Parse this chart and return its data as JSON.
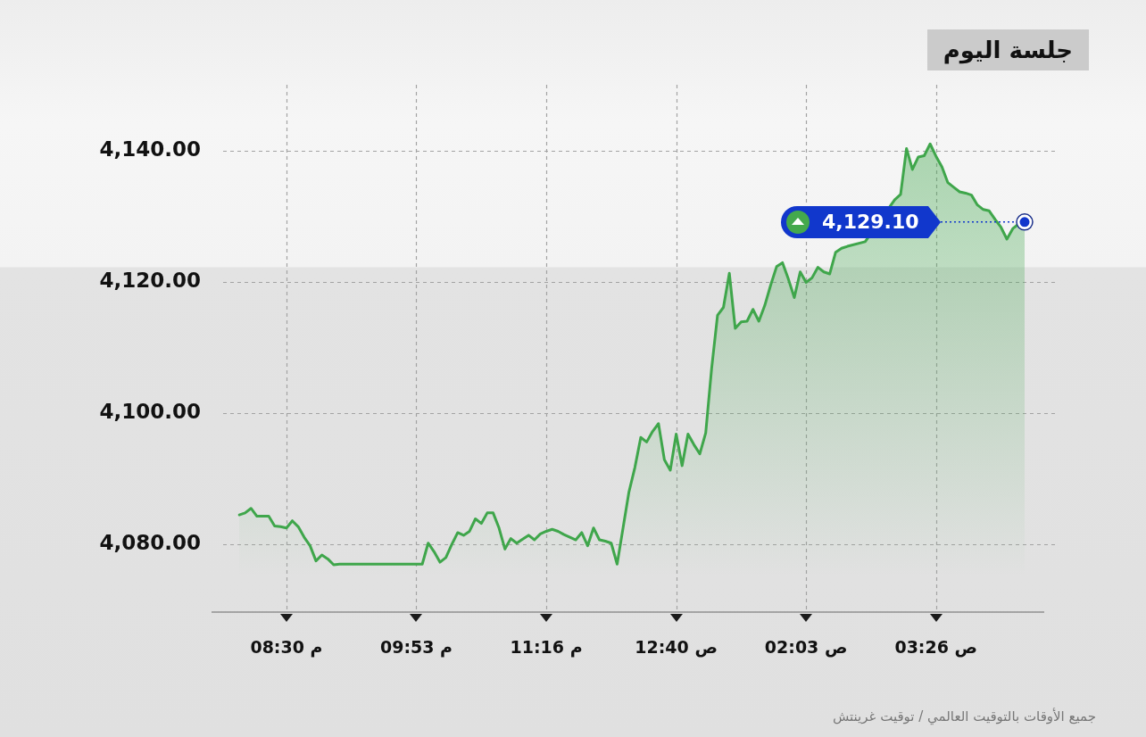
{
  "chart_data": {
    "type": "area",
    "title": "جلسة اليوم",
    "annotations": [
      "جميع الأوقات بالتوقيت العالمي / توقيت غرينتش"
    ],
    "ref_lines": [
      {
        "axis": "y",
        "value": 4129.1,
        "label": "4,129.10",
        "color": "#1137cc",
        "line_style": "dotted"
      }
    ],
    "color": "#3fa64b",
    "ylim": [
      4069.7,
      4150
    ],
    "yticks": [
      {
        "value": 4080,
        "label": "4,080.00"
      },
      {
        "value": 4100,
        "label": "4,100.00"
      },
      {
        "value": 4120,
        "label": "4,120.00"
      },
      {
        "value": 4140,
        "label": "4,140.00"
      }
    ],
    "grid": true,
    "categories": [
      null,
      null,
      null,
      null,
      null,
      null,
      null,
      null,
      "08:30 م",
      null,
      null,
      null,
      null,
      null,
      null,
      null,
      null,
      null,
      null,
      null,
      null,
      null,
      null,
      null,
      null,
      null,
      null,
      null,
      null,
      null,
      "09:53 م",
      null,
      null,
      null,
      null,
      null,
      null,
      null,
      null,
      null,
      null,
      null,
      null,
      null,
      null,
      null,
      null,
      null,
      null,
      null,
      null,
      null,
      "11:16 م",
      null,
      null,
      null,
      null,
      null,
      null,
      null,
      null,
      null,
      null,
      null,
      null,
      null,
      null,
      null,
      null,
      null,
      null,
      null,
      null,
      null,
      "12:40 ص",
      null,
      null,
      null,
      null,
      null,
      null,
      null,
      null,
      null,
      null,
      null,
      null,
      null,
      null,
      null,
      null,
      null,
      null,
      null,
      null,
      null,
      "02:03 ص",
      null,
      null,
      null,
      null,
      null,
      null,
      null,
      null,
      null,
      null,
      null,
      null,
      null,
      null,
      null,
      null,
      null,
      null,
      null,
      null,
      null,
      "03:26 ص",
      null,
      null,
      null,
      null,
      null,
      null,
      null,
      null,
      null,
      null,
      null,
      null,
      null,
      null,
      null
    ],
    "values": [
      4084.5,
      4084.8,
      4085.5,
      4084.3,
      4084.3,
      4084.3,
      4082.8,
      4082.7,
      4082.5,
      4083.6,
      4082.7,
      4081.1,
      4079.8,
      4077.5,
      4078.4,
      4077.8,
      4076.9,
      4077.0,
      4077.0,
      4077.0,
      4077.0,
      4077.0,
      4077.0,
      4077.0,
      4077.0,
      4077.0,
      4077.0,
      4077.0,
      4077.0,
      4077.0,
      4077.0,
      4077.0,
      4080.2,
      4078.9,
      4077.3,
      4078.0,
      4080.0,
      4081.8,
      4081.4,
      4082.0,
      4083.9,
      4083.2,
      4084.8,
      4084.8,
      4082.5,
      4079.3,
      4080.9,
      4080.2,
      4080.8,
      4081.4,
      4080.7,
      4081.6,
      4082.0,
      4082.3,
      4082.0,
      4081.5,
      4081.1,
      4080.7,
      4081.8,
      4079.8,
      4082.5,
      4080.7,
      4080.5,
      4080.2,
      4077.0,
      4082.5,
      4088.0,
      4091.7,
      4096.3,
      4095.6,
      4097.2,
      4098.4,
      4092.9,
      4091.3,
      4096.8,
      4092.0,
      4096.8,
      4095.2,
      4093.8,
      4097.0,
      4106.8,
      4114.9,
      4116.1,
      4121.3,
      4112.9,
      4113.9,
      4114.0,
      4115.8,
      4114.0,
      4116.4,
      4119.5,
      4122.3,
      4122.9,
      4120.4,
      4117.6,
      4121.5,
      4119.9,
      4120.6,
      4122.2,
      4121.5,
      4121.2,
      4124.5,
      4125.1,
      4125.4,
      null,
      null,
      4126.1,
      null,
      null,
      null,
      null,
      4132.5,
      4133.3,
      4140.3,
      4137.1,
      4139.0,
      4139.2,
      4141.0,
      4139.1,
      4137.5,
      4135.1,
      4134.4,
      4133.7,
      4133.5,
      4133.2,
      4131.7,
      4131.0,
      4130.8,
      4129.5,
      4128.3,
      4126.5,
      4128.1,
      4128.8,
      4129.1
    ]
  }
}
